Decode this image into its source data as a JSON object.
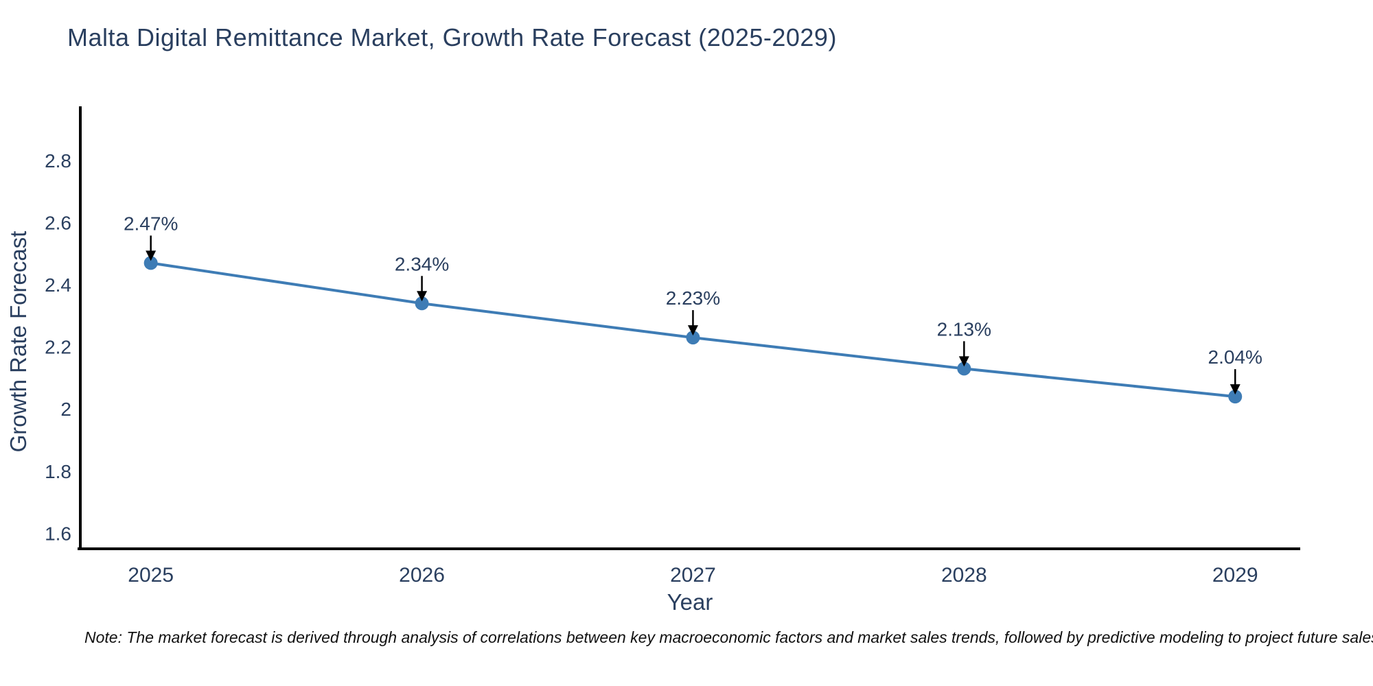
{
  "chart_data": {
    "type": "line",
    "title": "Malta Digital Remittance Market, Growth Rate Forecast (2025-2029)",
    "xlabel": "Year",
    "ylabel": "Growth Rate Forecast",
    "x": [
      2025,
      2026,
      2027,
      2028,
      2029
    ],
    "y": [
      2.47,
      2.34,
      2.23,
      2.13,
      2.04
    ],
    "point_labels": [
      "2.47%",
      "2.34%",
      "2.23%",
      "2.13%",
      "2.04%"
    ],
    "xticks": [
      2025,
      2026,
      2027,
      2028,
      2029
    ],
    "yticks": [
      1.6,
      1.8,
      2,
      2.2,
      2.4,
      2.6,
      2.8
    ],
    "xlim": [
      2024.74,
      2029.24
    ],
    "ylim": [
      1.55,
      2.97
    ],
    "grid": false,
    "legend": null,
    "line_color": "#3e7cb5",
    "marker_color": "#3e7cb5",
    "annotation_arrow_color": "#000000",
    "axis_line_color": "#000000",
    "text_color": "#2a3f5f"
  },
  "note": "Note: The market forecast is derived through analysis of correlations between key macroeconomic factors and market sales trends, followed by predictive modeling to project future sales"
}
